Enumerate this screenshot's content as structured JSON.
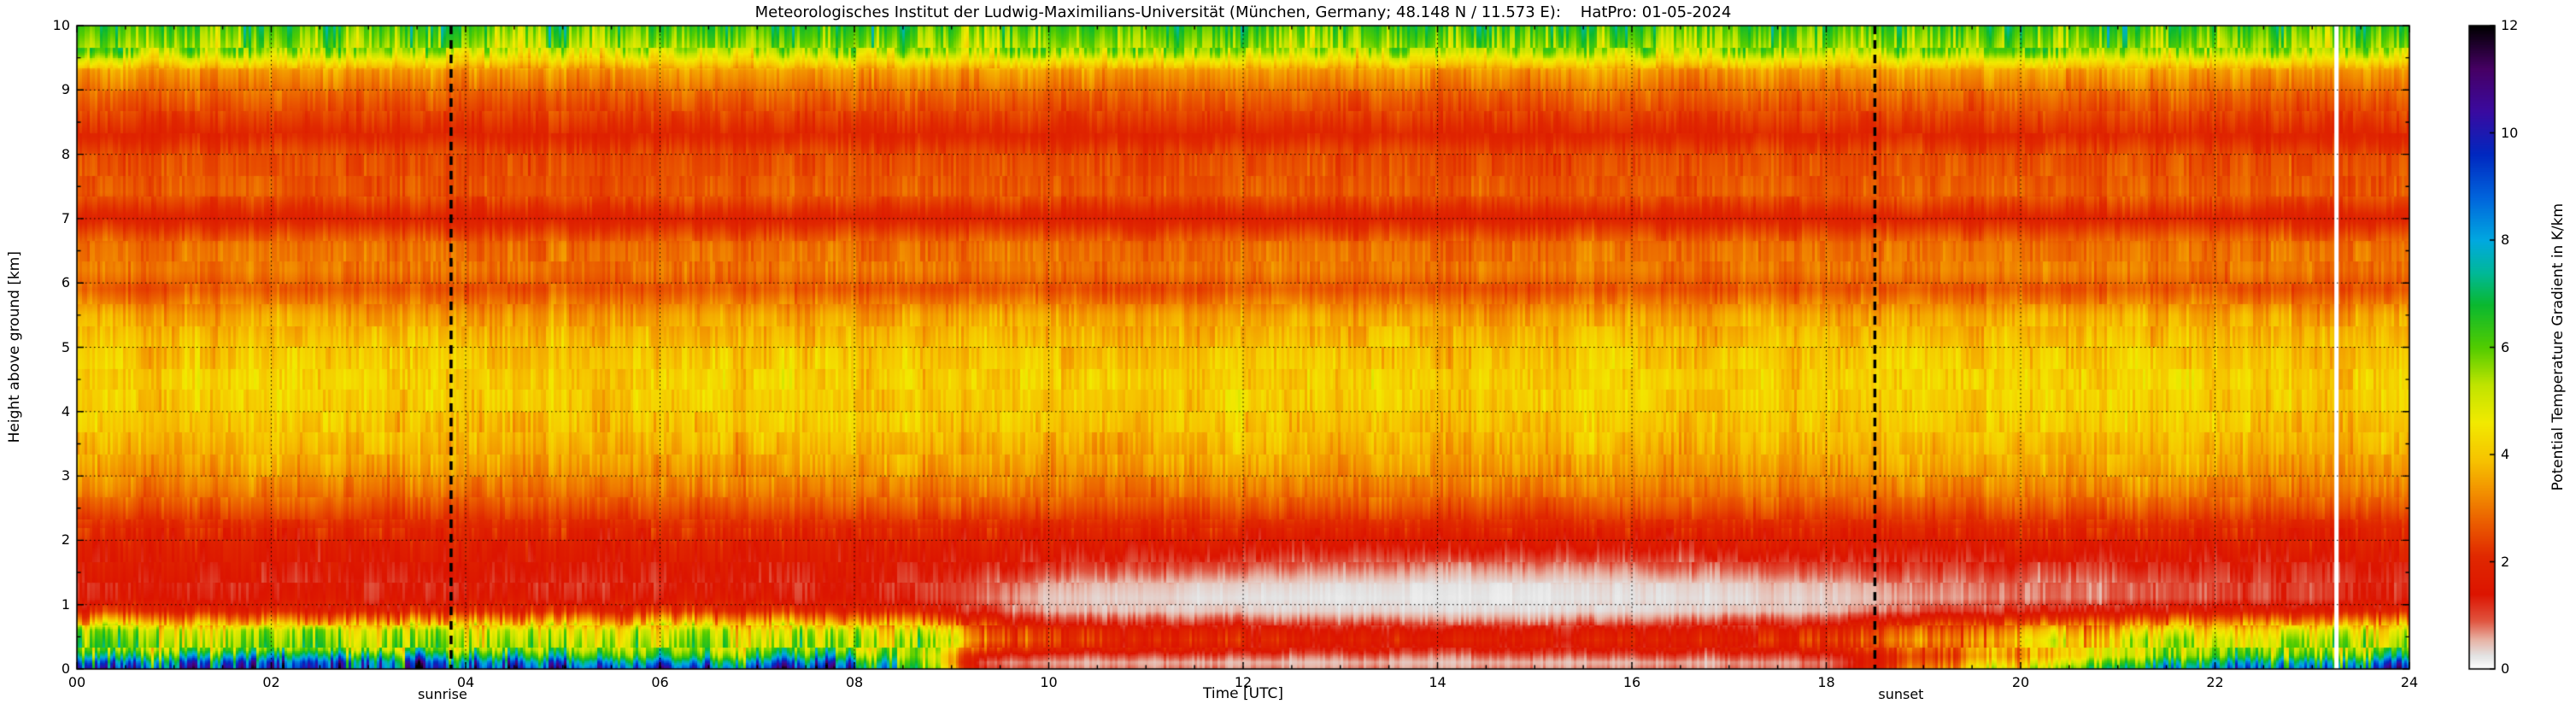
{
  "chart_data": {
    "type": "heatmap",
    "title": "Meteorologisches Institut der Ludwig-Maximilians-Universität (München, Germany; 48.148 N / 11.573 E):    HatPro: 01-05-2024",
    "xlabel": "Time [UTC]",
    "ylabel": "Height above ground [km]",
    "colorbar_label": "Potential Temperature Gradient in K/km",
    "x_range": [
      0,
      24
    ],
    "y_range": [
      0,
      10
    ],
    "value_range": [
      0,
      12
    ],
    "grid": true,
    "x_tick_values": [
      0,
      2,
      4,
      6,
      8,
      10,
      12,
      14,
      16,
      18,
      20,
      22,
      24
    ],
    "x_tick_labels": [
      "00",
      "02",
      "04",
      "06",
      "08",
      "10",
      "12",
      "14",
      "16",
      "18",
      "20",
      "22",
      "24"
    ],
    "y_tick_values": [
      0,
      1,
      2,
      3,
      4,
      5,
      6,
      7,
      8,
      9,
      10
    ],
    "y_tick_labels": [
      "0",
      "1",
      "2",
      "3",
      "4",
      "5",
      "6",
      "7",
      "8",
      "9",
      "10"
    ],
    "colorbar_tick_values": [
      0,
      2,
      4,
      6,
      8,
      10,
      12
    ],
    "colorbar_tick_labels": [
      "0",
      "2",
      "4",
      "6",
      "8",
      "10",
      "12"
    ],
    "annotations": [
      {
        "type": "vline",
        "x": 3.85,
        "style": "dashed",
        "label": "sunrise"
      },
      {
        "type": "vline",
        "x": 18.5,
        "style": "dashed",
        "label": "sunset"
      }
    ],
    "data_gaps_x": [
      23.25
    ],
    "colormap_stops": [
      [
        0.0,
        "#ffffff"
      ],
      [
        0.25,
        "#e3e3e3"
      ],
      [
        0.55,
        "#e7b3a5"
      ],
      [
        0.9,
        "#e05540"
      ],
      [
        1.4,
        "#dc1400"
      ],
      [
        2.1,
        "#e02800"
      ],
      [
        2.7,
        "#ea5a00"
      ],
      [
        3.3,
        "#f29000"
      ],
      [
        3.9,
        "#f6c300"
      ],
      [
        4.6,
        "#f2ea00"
      ],
      [
        5.3,
        "#c0e400"
      ],
      [
        6.0,
        "#52cc00"
      ],
      [
        6.8,
        "#0ab830"
      ],
      [
        7.4,
        "#00b89a"
      ],
      [
        8.0,
        "#00a8e0"
      ],
      [
        8.8,
        "#0064dc"
      ],
      [
        9.6,
        "#0028c0"
      ],
      [
        10.4,
        "#3a0aa0"
      ],
      [
        11.2,
        "#460064"
      ],
      [
        12.0,
        "#000000"
      ]
    ],
    "grid_times_utc": [
      0,
      3,
      6,
      8,
      8.7,
      9.3,
      10,
      12,
      14,
      16,
      18,
      19,
      21,
      23,
      24
    ],
    "grid_heights_km": [
      0.0,
      0.1,
      0.2,
      0.3,
      0.45,
      0.6,
      0.75,
      0.9,
      1.1,
      1.3,
      1.6,
      1.9,
      2.2,
      2.5,
      2.8,
      3.2,
      3.6,
      4.0,
      4.5,
      5.0,
      5.5,
      5.9,
      6.2,
      6.6,
      7.0,
      7.4,
      8.0,
      8.3,
      8.7,
      9.0,
      9.3,
      9.6,
      10.0
    ],
    "values_K_per_km": [
      [
        9.8,
        8.6,
        6.9,
        5.8,
        5.5,
        5.1,
        3.4,
        2.0,
        1.4,
        1.3,
        1.5,
        1.7,
        2.0,
        2.6,
        3.1,
        3.5,
        3.8,
        4.0,
        4.1,
        3.9,
        3.5,
        2.6,
        3.0,
        2.9,
        1.9,
        2.7,
        2.5,
        2.0,
        2.5,
        2.9,
        3.4,
        5.4,
        6.3
      ],
      [
        9.2,
        8.8,
        7.2,
        5.6,
        5.3,
        5.0,
        3.2,
        1.9,
        1.4,
        1.3,
        1.5,
        1.7,
        2.0,
        2.5,
        3.0,
        3.5,
        3.8,
        4.0,
        4.1,
        3.9,
        3.4,
        2.6,
        3.0,
        2.9,
        1.9,
        2.6,
        2.5,
        2.0,
        2.5,
        2.9,
        3.4,
        5.4,
        6.2
      ],
      [
        9.9,
        8.4,
        6.6,
        5.9,
        5.6,
        5.2,
        3.5,
        2.1,
        1.5,
        1.3,
        1.5,
        1.7,
        2.1,
        2.6,
        3.1,
        3.5,
        3.8,
        4.0,
        4.1,
        3.9,
        3.5,
        2.7,
        3.0,
        2.9,
        1.9,
        2.7,
        2.5,
        2.0,
        2.5,
        2.9,
        3.4,
        5.3,
        6.3
      ],
      [
        9.0,
        8.0,
        6.5,
        5.5,
        5.4,
        5.0,
        3.3,
        2.0,
        1.4,
        1.3,
        1.5,
        1.7,
        2.0,
        2.6,
        3.1,
        3.5,
        3.8,
        4.0,
        4.1,
        3.9,
        3.5,
        2.6,
        3.0,
        2.9,
        1.9,
        2.7,
        2.5,
        2.0,
        2.5,
        2.9,
        3.4,
        5.4,
        6.3
      ],
      [
        6.0,
        5.6,
        5.2,
        5.3,
        5.2,
        4.6,
        3.0,
        1.8,
        1.3,
        1.2,
        1.4,
        1.7,
        2.0,
        2.6,
        3.1,
        3.5,
        3.8,
        4.0,
        4.1,
        3.9,
        3.5,
        2.6,
        3.0,
        2.9,
        1.9,
        2.7,
        2.5,
        2.0,
        2.5,
        2.9,
        3.4,
        5.4,
        6.3
      ],
      [
        1.2,
        0.9,
        1.5,
        2.4,
        3.2,
        2.8,
        1.9,
        1.1,
        0.8,
        0.9,
        1.3,
        1.6,
        2.0,
        2.6,
        3.1,
        3.5,
        3.8,
        4.0,
        4.1,
        3.9,
        3.5,
        2.6,
        3.0,
        2.9,
        1.9,
        2.7,
        2.5,
        2.0,
        2.5,
        2.9,
        3.4,
        5.4,
        6.3
      ],
      [
        0.8,
        0.6,
        1.0,
        1.8,
        2.2,
        2.0,
        1.2,
        0.6,
        0.45,
        0.6,
        1.2,
        1.6,
        2.0,
        2.6,
        3.1,
        3.5,
        3.8,
        4.0,
        4.1,
        3.9,
        3.5,
        2.6,
        3.0,
        2.9,
        1.9,
        2.7,
        2.5,
        2.0,
        2.5,
        2.9,
        3.4,
        5.4,
        6.3
      ],
      [
        0.7,
        0.5,
        0.9,
        1.5,
        1.9,
        1.6,
        0.9,
        0.4,
        0.25,
        0.35,
        0.9,
        1.5,
        2.0,
        2.6,
        3.1,
        3.5,
        3.8,
        4.0,
        4.1,
        3.9,
        3.5,
        2.6,
        3.0,
        2.9,
        1.9,
        2.7,
        2.5,
        2.0,
        2.5,
        2.9,
        3.4,
        5.4,
        6.3
      ],
      [
        0.7,
        0.5,
        0.8,
        1.3,
        1.7,
        1.4,
        0.7,
        0.3,
        0.2,
        0.25,
        0.7,
        1.4,
        2.0,
        2.6,
        3.1,
        3.5,
        3.8,
        4.0,
        4.1,
        3.9,
        3.5,
        2.6,
        3.0,
        2.9,
        1.9,
        2.7,
        2.5,
        2.0,
        2.5,
        2.9,
        3.4,
        5.4,
        6.3
      ],
      [
        0.7,
        0.5,
        0.9,
        1.4,
        1.8,
        1.5,
        0.8,
        0.35,
        0.25,
        0.3,
        0.8,
        1.5,
        2.0,
        2.6,
        3.1,
        3.5,
        3.8,
        4.0,
        4.1,
        3.9,
        3.5,
        2.6,
        3.0,
        2.9,
        1.9,
        2.7,
        2.5,
        2.0,
        2.5,
        2.9,
        3.4,
        5.4,
        6.3
      ],
      [
        0.8,
        0.7,
        1.1,
        1.7,
        2.1,
        1.8,
        1.1,
        0.5,
        0.4,
        0.5,
        1.0,
        1.6,
        2.0,
        2.6,
        3.1,
        3.5,
        3.8,
        4.0,
        4.1,
        3.9,
        3.5,
        2.6,
        3.0,
        2.9,
        1.9,
        2.7,
        2.5,
        2.0,
        2.5,
        2.9,
        3.4,
        5.4,
        6.3
      ],
      [
        3.0,
        2.6,
        2.3,
        2.6,
        3.0,
        2.6,
        1.8,
        0.9,
        0.6,
        0.7,
        1.1,
        1.6,
        2.0,
        2.6,
        3.1,
        3.5,
        3.8,
        4.0,
        4.1,
        3.9,
        3.5,
        2.6,
        3.0,
        2.9,
        1.9,
        2.7,
        2.5,
        2.0,
        2.5,
        2.9,
        3.4,
        5.4,
        6.3
      ],
      [
        6.5,
        5.6,
        4.6,
        4.5,
        4.5,
        3.8,
        2.5,
        1.4,
        0.8,
        0.8,
        1.2,
        1.6,
        2.0,
        2.6,
        3.1,
        3.5,
        3.8,
        4.0,
        4.1,
        3.9,
        3.5,
        2.6,
        3.0,
        2.9,
        1.9,
        2.7,
        2.5,
        2.0,
        2.5,
        2.9,
        3.4,
        5.4,
        6.3
      ],
      [
        8.5,
        7.6,
        6.1,
        5.5,
        5.2,
        4.6,
        3.0,
        1.7,
        1.1,
        1.1,
        1.3,
        1.7,
        2.0,
        2.6,
        3.1,
        3.5,
        3.8,
        4.0,
        4.1,
        3.9,
        3.5,
        2.6,
        3.0,
        2.9,
        1.9,
        2.7,
        2.5,
        2.0,
        2.5,
        2.9,
        3.4,
        5.4,
        6.3
      ],
      [
        9.6,
        8.5,
        6.8,
        5.8,
        5.5,
        5.0,
        3.4,
        2.0,
        1.4,
        1.3,
        1.5,
        1.7,
        2.0,
        2.6,
        3.1,
        3.5,
        3.8,
        4.0,
        4.1,
        3.9,
        3.5,
        2.6,
        3.0,
        2.9,
        1.9,
        2.7,
        2.5,
        2.0,
        2.5,
        2.9,
        3.4,
        5.4,
        6.3
      ]
    ]
  }
}
